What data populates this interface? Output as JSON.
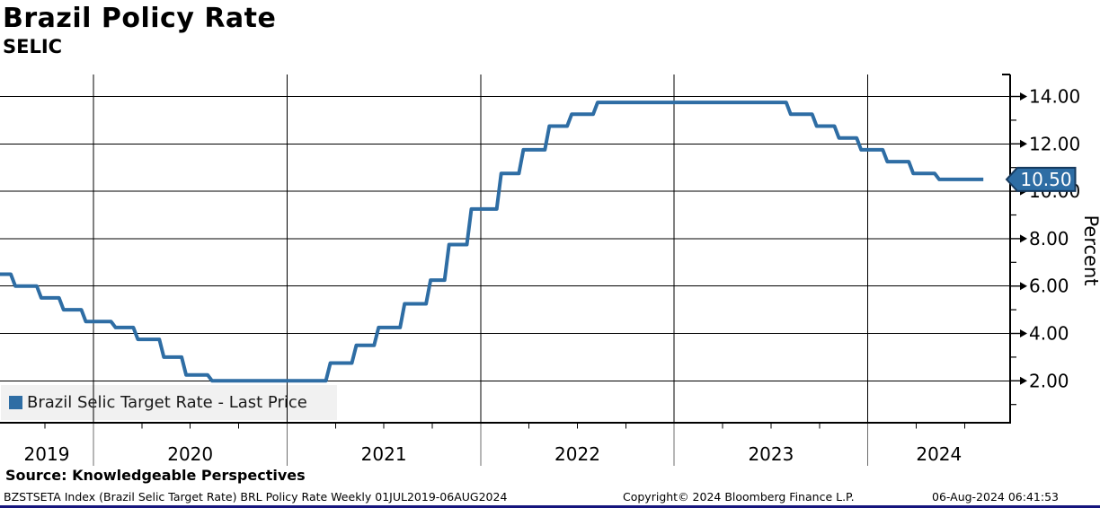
{
  "header": {
    "title": "Brazil Policy Rate",
    "subtitle": "SELIC"
  },
  "legend": {
    "label": "Brazil Selic Target Rate - Last Price"
  },
  "last_price": {
    "value": "10.50"
  },
  "source_line": "Source: Knowledgeable Perspectives",
  "footer": {
    "left": "BZSTSETA Index (Brazil Selic Target Rate) BRL Policy Rate  Weekly 01JUL2019-06AUG2024",
    "center": "Copyright© 2024 Bloomberg Finance L.P.",
    "right": "06-Aug-2024 06:41:53"
  },
  "colors": {
    "line": "#2e6da4",
    "tag_fill": "#2e6da4",
    "tag_border": "#16395d",
    "tag_text": "#ffffff",
    "grid": "#000000",
    "separator": "#6e6e6e",
    "legend_bg": "#f1f1f1",
    "bottom_bar": "#15157d"
  },
  "chart_data": {
    "type": "line",
    "style": "step",
    "title": "Brazil Policy Rate",
    "subtitle": "SELIC",
    "ylabel": "Percent",
    "frequency": "Weekly",
    "x_range": [
      "2019-07-01",
      "2024-08-06"
    ],
    "ylim": [
      0.2,
      14.9
    ],
    "grid": true,
    "legend_position": "bottom-left",
    "yticks_major": [
      {
        "v": 2,
        "label": "2.00"
      },
      {
        "v": 4,
        "label": "4.00"
      },
      {
        "v": 6,
        "label": "6.00"
      },
      {
        "v": 8,
        "label": "8.00"
      },
      {
        "v": 10,
        "label": "10.00"
      },
      {
        "v": 12,
        "label": "12.00"
      },
      {
        "v": 14,
        "label": "14.00"
      }
    ],
    "yticks_minor": [
      1,
      3,
      5,
      7,
      9,
      11,
      13
    ],
    "xticks_years": [
      {
        "year": 2019,
        "label": "2019"
      },
      {
        "year": 2020,
        "label": "2020"
      },
      {
        "year": 2021,
        "label": "2021"
      },
      {
        "year": 2022,
        "label": "2022"
      },
      {
        "year": 2023,
        "label": "2023"
      },
      {
        "year": 2024,
        "label": "2024"
      }
    ],
    "series": [
      {
        "name": "Brazil Selic Target Rate - Last Price",
        "color": "#2e6da4",
        "last_value": 10.5,
        "steps": [
          [
            "2019-07-01",
            6.5
          ],
          [
            "2019-07-31",
            6.0
          ],
          [
            "2019-09-18",
            5.5
          ],
          [
            "2019-10-30",
            5.0
          ],
          [
            "2019-12-11",
            4.5
          ],
          [
            "2020-02-05",
            4.25
          ],
          [
            "2020-03-18",
            3.75
          ],
          [
            "2020-05-06",
            3.0
          ],
          [
            "2020-06-17",
            2.25
          ],
          [
            "2020-08-05",
            2.0
          ],
          [
            "2021-03-17",
            2.75
          ],
          [
            "2021-05-05",
            3.5
          ],
          [
            "2021-06-16",
            4.25
          ],
          [
            "2021-08-04",
            5.25
          ],
          [
            "2021-09-22",
            6.25
          ],
          [
            "2021-10-27",
            7.75
          ],
          [
            "2021-12-08",
            9.25
          ],
          [
            "2022-02-02",
            10.75
          ],
          [
            "2022-03-16",
            11.75
          ],
          [
            "2022-05-04",
            12.75
          ],
          [
            "2022-06-15",
            13.25
          ],
          [
            "2022-08-03",
            13.75
          ],
          [
            "2023-08-02",
            13.25
          ],
          [
            "2023-09-20",
            12.75
          ],
          [
            "2023-11-01",
            12.25
          ],
          [
            "2023-12-13",
            11.75
          ],
          [
            "2024-01-31",
            11.25
          ],
          [
            "2024-03-20",
            10.75
          ],
          [
            "2024-05-08",
            10.5
          ]
        ]
      }
    ]
  }
}
